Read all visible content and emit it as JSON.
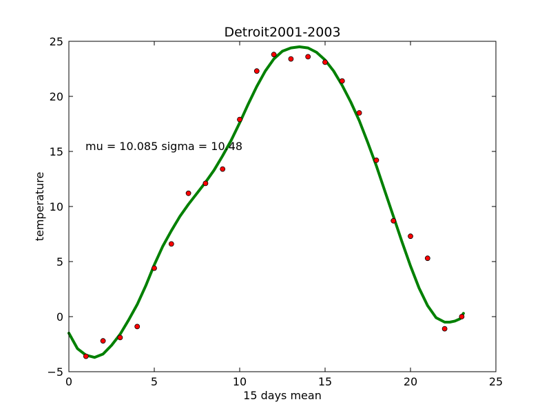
{
  "chart_data": {
    "type": "scatter",
    "title": "Detroit2001-2003",
    "xlabel": "15 days mean",
    "ylabel": "temperature",
    "xlim": [
      0,
      25
    ],
    "ylim": [
      -5,
      25
    ],
    "xticks": [
      "0",
      "5",
      "10",
      "15",
      "20",
      "25"
    ],
    "yticks": [
      "−5",
      "0",
      "5",
      "10",
      "15",
      "20",
      "25"
    ],
    "grid": false,
    "annotation": "mu = 10.085 sigma = 10.48",
    "colors": {
      "points": "#ff0000",
      "point_edge": "#000000",
      "curve": "#008000"
    },
    "series": [
      {
        "kind": "scatter",
        "x": [
          1,
          2,
          3,
          4,
          5,
          6,
          7,
          8,
          9,
          10,
          11,
          12,
          13,
          14,
          15,
          16,
          17,
          18,
          19,
          20,
          21,
          22,
          23
        ],
        "y": [
          -3.6,
          -2.2,
          -1.9,
          -0.9,
          4.4,
          6.6,
          11.2,
          12.1,
          13.4,
          17.9,
          22.3,
          23.8,
          23.4,
          23.6,
          23.1,
          21.4,
          18.5,
          14.2,
          8.7,
          7.3,
          5.3,
          -1.1,
          0.0
        ]
      },
      {
        "kind": "line",
        "x": [
          0,
          0.5,
          1,
          1.5,
          2,
          2.5,
          3,
          3.5,
          4,
          4.5,
          5,
          5.5,
          6,
          6.5,
          7,
          7.5,
          8,
          8.5,
          9,
          9.5,
          10,
          10.5,
          11,
          11.5,
          12,
          12.5,
          13,
          13.5,
          14,
          14.5,
          15,
          15.5,
          16,
          16.5,
          17,
          17.5,
          18,
          18.5,
          19,
          19.5,
          20,
          20.5,
          21,
          21.5,
          22,
          22.3,
          22.6,
          22.9,
          23.1
        ],
        "y": [
          -1.5,
          -2.9,
          -3.5,
          -3.7,
          -3.4,
          -2.6,
          -1.6,
          -0.3,
          1.1,
          2.8,
          4.7,
          6.4,
          7.8,
          9.1,
          10.2,
          11.2,
          12.2,
          13.3,
          14.6,
          16.0,
          17.6,
          19.3,
          20.9,
          22.3,
          23.4,
          24.1,
          24.4,
          24.5,
          24.4,
          24.0,
          23.3,
          22.3,
          21.0,
          19.5,
          17.8,
          15.8,
          13.7,
          11.4,
          9.1,
          6.8,
          4.6,
          2.6,
          1.0,
          -0.1,
          -0.5,
          -0.5,
          -0.4,
          -0.2,
          0.3
        ]
      }
    ]
  }
}
